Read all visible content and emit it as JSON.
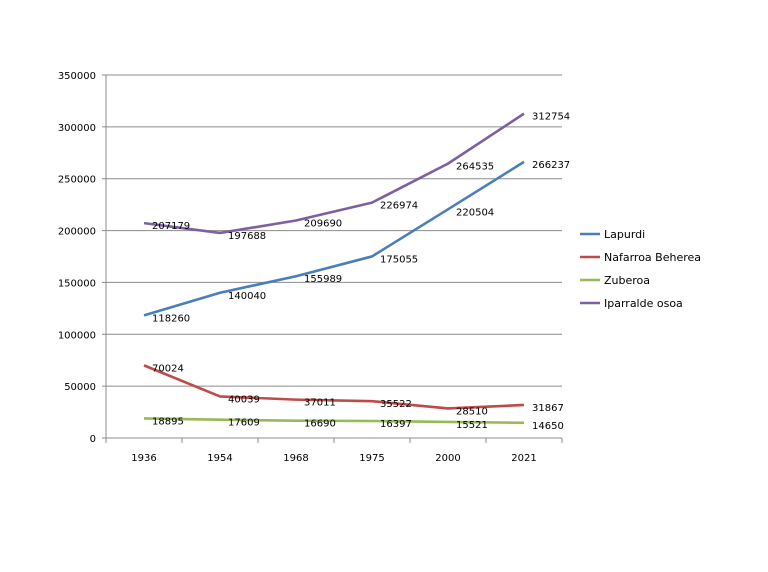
{
  "chart_data": {
    "type": "line",
    "title": "",
    "xlabel": "",
    "ylabel": "",
    "categories": [
      "1936",
      "1954",
      "1968",
      "1975",
      "2000",
      "2021"
    ],
    "ylim": [
      0,
      350000
    ],
    "yticks": [
      0,
      50000,
      100000,
      150000,
      200000,
      250000,
      300000,
      350000
    ],
    "ytick_labels": [
      "0",
      "50000",
      "100000",
      "150000",
      "200000",
      "250000",
      "300000",
      "350000"
    ],
    "grid": "horizontal",
    "legend_position": "right",
    "series": [
      {
        "name": "Lapurdi",
        "color": "#4a7ebb",
        "values": [
          118260,
          140040,
          155989,
          175055,
          220504,
          266237
        ]
      },
      {
        "name": "Nafarroa Beherea",
        "color": "#be4b48",
        "values": [
          70024,
          40039,
          37011,
          35522,
          28510,
          31867
        ]
      },
      {
        "name": "Zuberoa",
        "color": "#98b954",
        "values": [
          18895,
          17609,
          16690,
          16397,
          15521,
          14650
        ]
      },
      {
        "name": "Iparralde osoa",
        "color": "#7d60a0",
        "values": [
          207179,
          197688,
          209690,
          226974,
          264535,
          312754
        ]
      }
    ]
  }
}
